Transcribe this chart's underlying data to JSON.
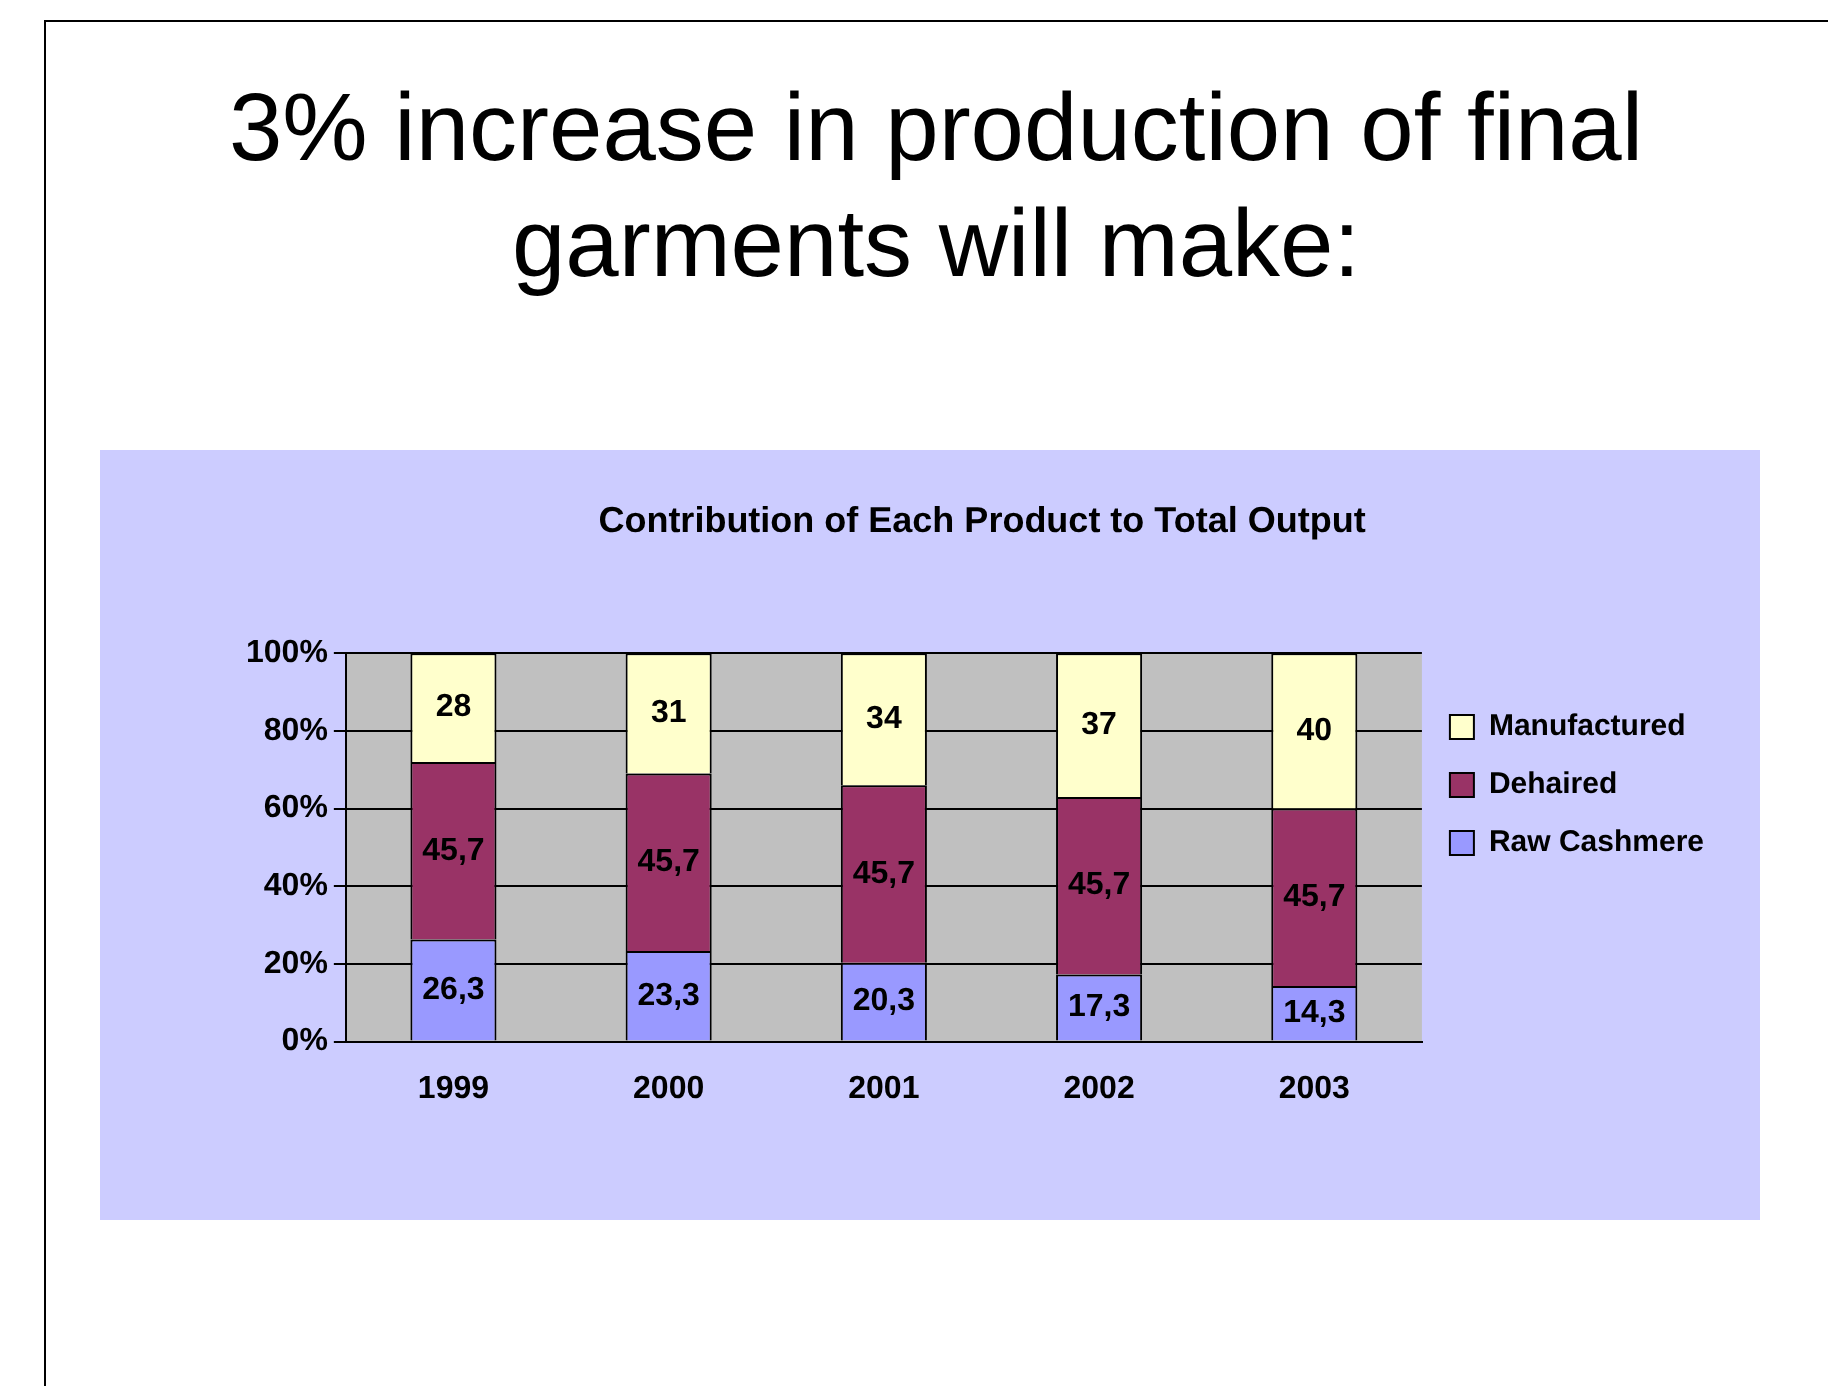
{
  "chart_data": {
    "type": "bar",
    "title": "3% increase in production of final garments will make:",
    "subtitle": "Contribution of Each Product to Total Output",
    "categories": [
      "1999",
      "2000",
      "2001",
      "2002",
      "2003"
    ],
    "stacked": true,
    "series": [
      {
        "name": "Raw Cashmere",
        "color": "#9999ff",
        "values": [
          26.3,
          23.3,
          20.3,
          17.3,
          14.3
        ],
        "value_labels": [
          "26,3",
          "23,3",
          "20,3",
          "17,3",
          "14,3"
        ]
      },
      {
        "name": "Dehaired",
        "color": "#993366",
        "values": [
          45.7,
          45.7,
          45.7,
          45.7,
          45.7
        ],
        "value_labels": [
          "45,7",
          "45,7",
          "45,7",
          "45,7",
          "45,7"
        ]
      },
      {
        "name": "Manufactured",
        "color": "#ffffcc",
        "values": [
          28,
          31,
          34,
          37,
          40
        ],
        "value_labels": [
          "28",
          "31",
          "34",
          "37",
          "40"
        ]
      }
    ],
    "ylim": [
      0,
      100
    ],
    "yticks": [
      {
        "value": 0,
        "label": "0%"
      },
      {
        "value": 20,
        "label": "20%"
      },
      {
        "value": 40,
        "label": "40%"
      },
      {
        "value": 60,
        "label": "60%"
      },
      {
        "value": 80,
        "label": "80%"
      },
      {
        "value": 100,
        "label": "100%"
      }
    ],
    "grid": "y",
    "legend": "right"
  }
}
